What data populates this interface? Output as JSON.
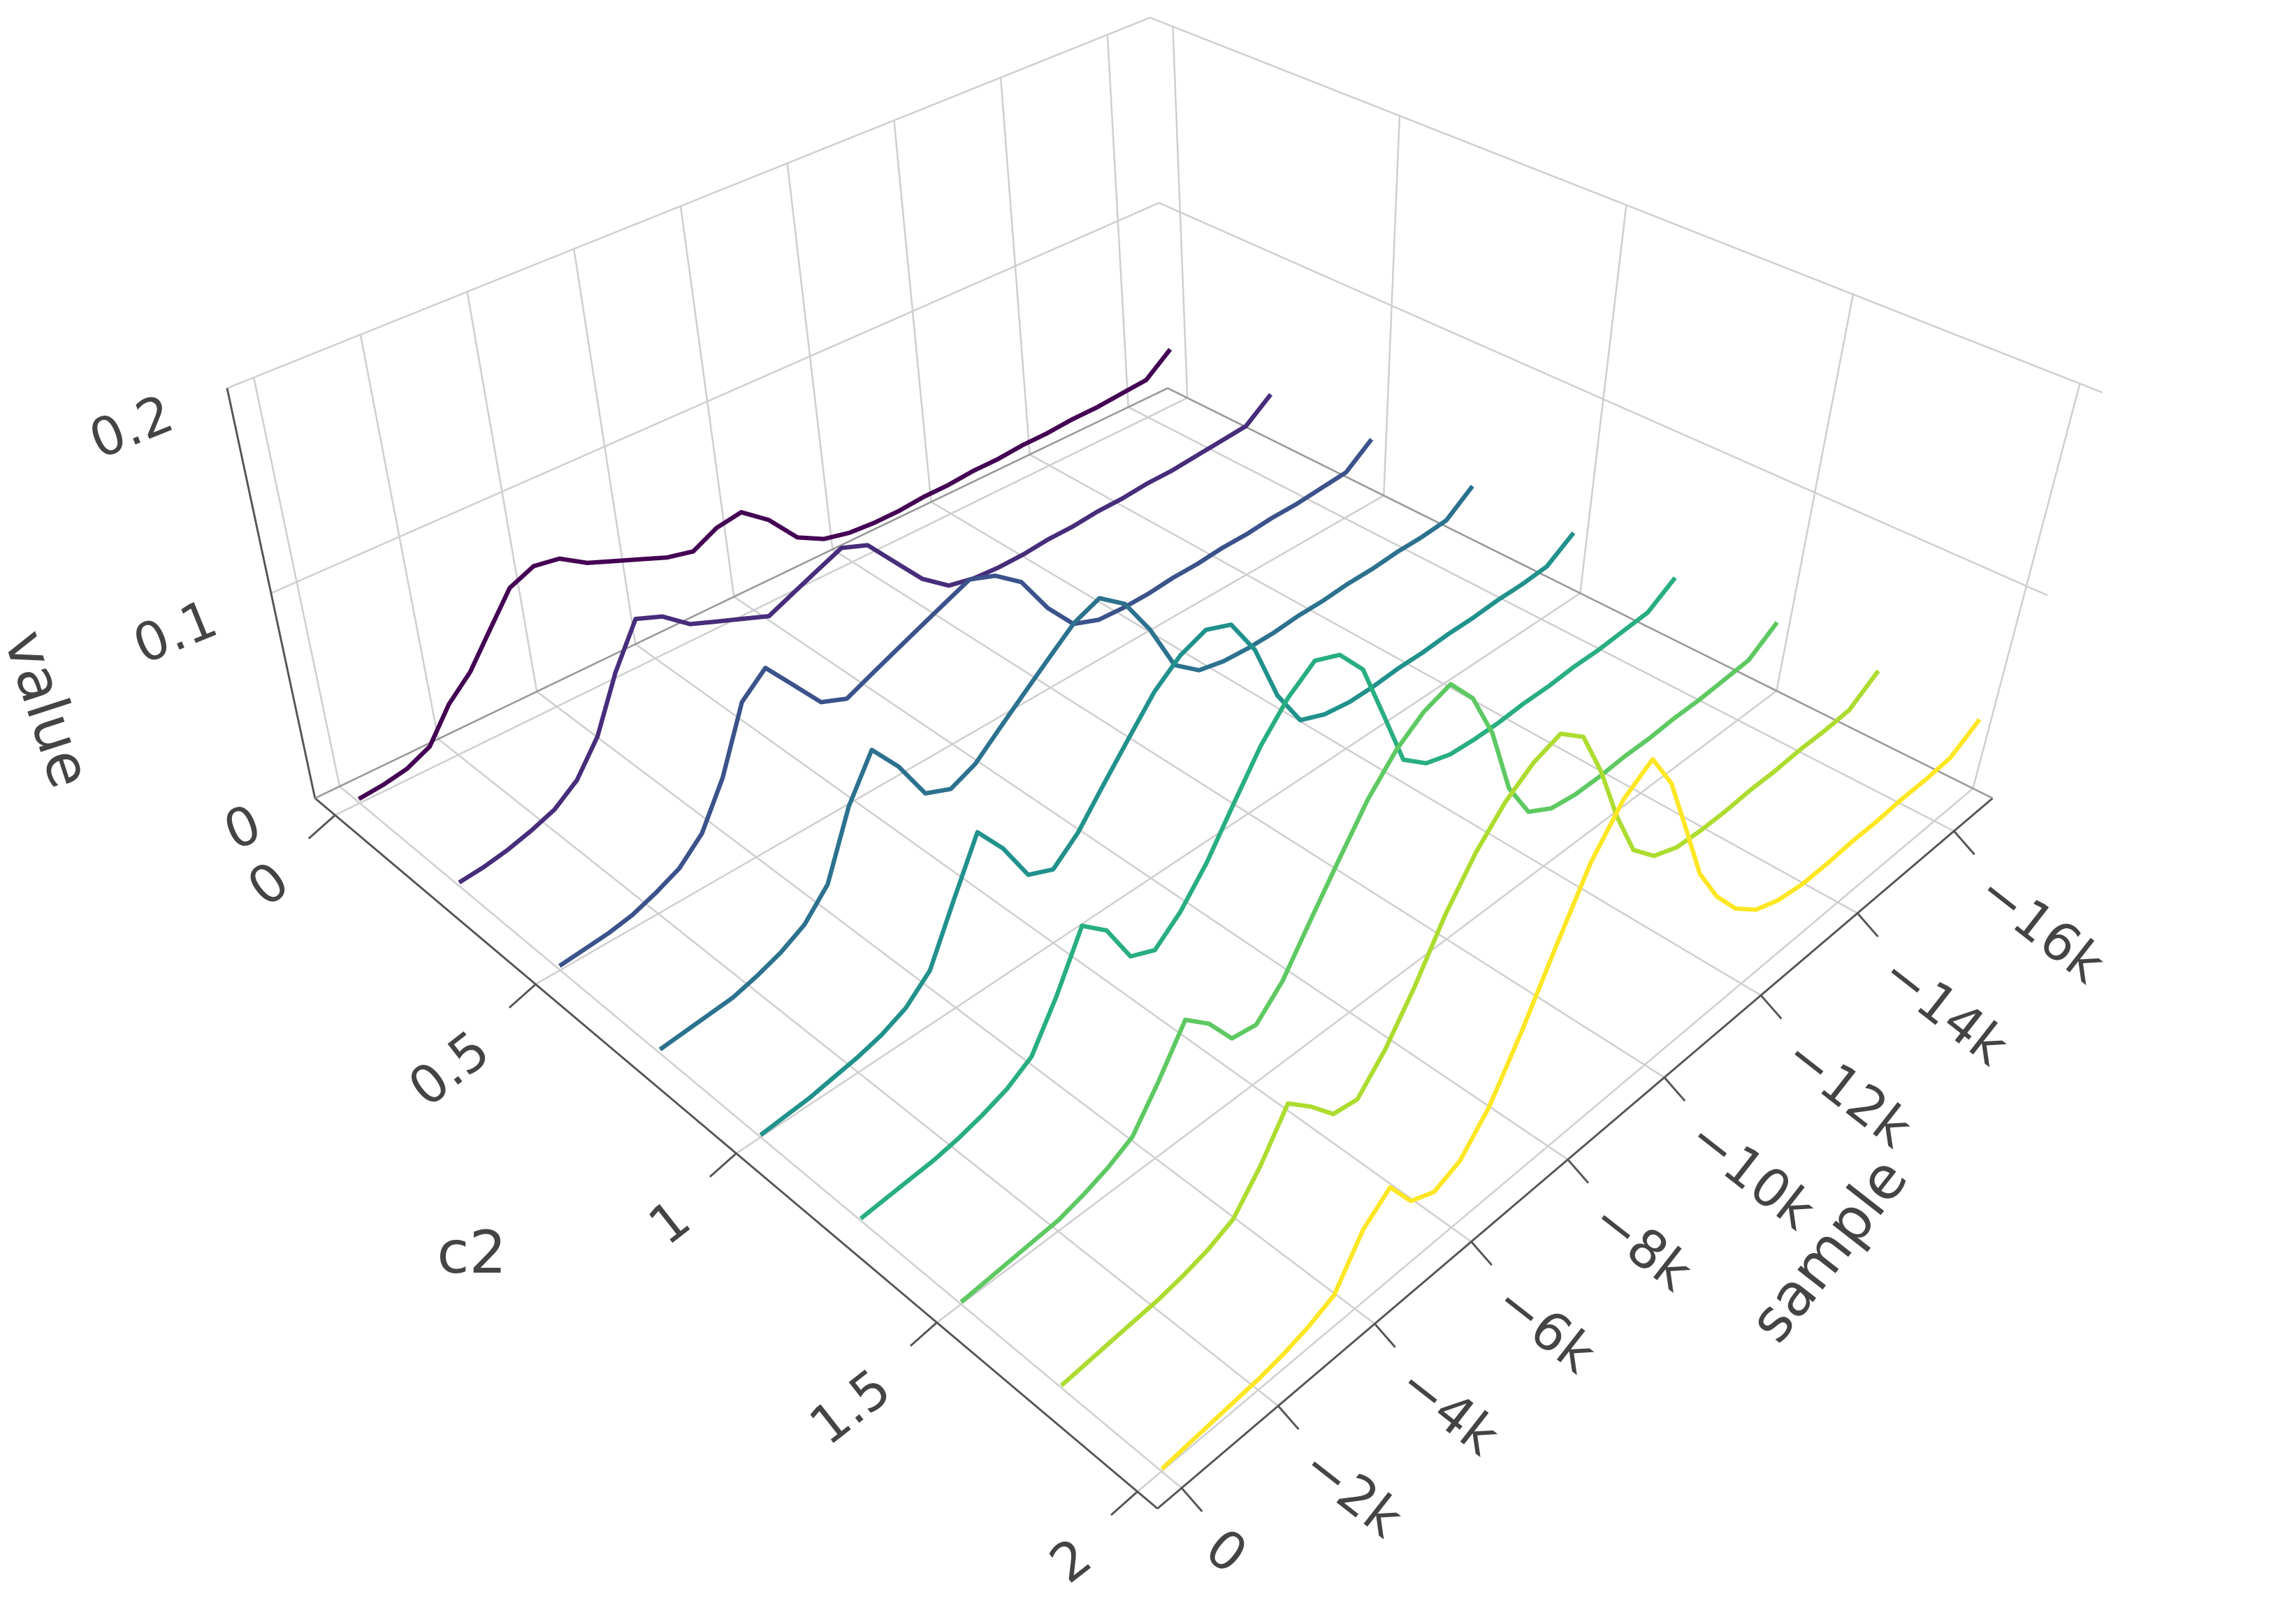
{
  "chart_data": {
    "type": "line3d",
    "x_title": "sample",
    "y_title": "c2",
    "z_title": "value",
    "xlim": [
      500,
      -16800
    ],
    "ylim": [
      -0.05,
      2.05
    ],
    "zlim": [
      0,
      0.2
    ],
    "xticks": [
      {
        "value": 0,
        "label": "0"
      },
      {
        "value": -2000,
        "label": "−2k"
      },
      {
        "value": -4000,
        "label": "−4k"
      },
      {
        "value": -6000,
        "label": "−6k"
      },
      {
        "value": -8000,
        "label": "−8k"
      },
      {
        "value": -10000,
        "label": "−10k"
      },
      {
        "value": -12000,
        "label": "−12k"
      },
      {
        "value": -14000,
        "label": "−14k"
      },
      {
        "value": -16000,
        "label": "−16k"
      }
    ],
    "yticks": [
      0,
      0.5,
      1,
      1.5,
      2
    ],
    "zticks": [
      0,
      0.1,
      0.2
    ],
    "grid": true,
    "x": [
      0,
      -500,
      -1000,
      -1500,
      -2000,
      -2500,
      -3000,
      -3500,
      -4000,
      -4500,
      -5000,
      -5500,
      -6000,
      -6500,
      -7000,
      -7500,
      -8000,
      -8500,
      -9000,
      -9500,
      -10000,
      -10500,
      -11000,
      -11500,
      -12000,
      -12500,
      -13000,
      -13500,
      -14000,
      -14500,
      -15000,
      -15500,
      -16000,
      -16500
    ],
    "series": [
      {
        "c2": 0,
        "color": "#440154",
        "values": [
          0.002,
          0.003,
          0.005,
          0.01,
          0.025,
          0.035,
          0.05,
          0.065,
          0.07,
          0.068,
          0.06,
          0.055,
          0.05,
          0.045,
          0.042,
          0.048,
          0.05,
          0.04,
          0.025,
          0.018,
          0.015,
          0.014,
          0.014,
          0.015,
          0.015,
          0.016,
          0.016,
          0.017,
          0.017,
          0.018,
          0.018,
          0.019,
          0.02,
          0.03
        ]
      },
      {
        "c2": 0.25,
        "color": "#472d7b",
        "values": [
          0.002,
          0.003,
          0.005,
          0.008,
          0.012,
          0.02,
          0.035,
          0.06,
          0.08,
          0.075,
          0.065,
          0.06,
          0.055,
          0.05,
          0.055,
          0.06,
          0.065,
          0.06,
          0.045,
          0.03,
          0.02,
          0.017,
          0.016,
          0.016,
          0.017,
          0.017,
          0.018,
          0.018,
          0.019,
          0.019,
          0.02,
          0.021,
          0.022,
          0.032
        ]
      },
      {
        "c2": 0.5,
        "color": "#3b528b",
        "values": [
          0.002,
          0.003,
          0.004,
          0.006,
          0.01,
          0.015,
          0.025,
          0.045,
          0.075,
          0.085,
          0.07,
          0.055,
          0.05,
          0.055,
          0.06,
          0.065,
          0.07,
          0.075,
          0.07,
          0.06,
          0.04,
          0.025,
          0.02,
          0.019,
          0.019,
          0.02,
          0.02,
          0.021,
          0.021,
          0.022,
          0.022,
          0.023,
          0.024,
          0.034
        ]
      },
      {
        "c2": 0.75,
        "color": "#2c728e",
        "values": [
          0.002,
          0.003,
          0.004,
          0.005,
          0.008,
          0.012,
          0.018,
          0.03,
          0.06,
          0.08,
          0.065,
          0.045,
          0.04,
          0.045,
          0.055,
          0.065,
          0.075,
          0.085,
          0.09,
          0.08,
          0.06,
          0.035,
          0.025,
          0.022,
          0.021,
          0.021,
          0.022,
          0.022,
          0.023,
          0.023,
          0.024,
          0.024,
          0.025,
          0.035
        ]
      },
      {
        "c2": 1,
        "color": "#21918c",
        "values": [
          0.001,
          0.002,
          0.003,
          0.005,
          0.007,
          0.01,
          0.015,
          0.025,
          0.05,
          0.075,
          0.06,
          0.04,
          0.035,
          0.045,
          0.06,
          0.075,
          0.09,
          0.1,
          0.105,
          0.1,
          0.08,
          0.05,
          0.03,
          0.025,
          0.023,
          0.023,
          0.024,
          0.024,
          0.025,
          0.025,
          0.026,
          0.026,
          0.027,
          0.036
        ]
      },
      {
        "c2": 1.25,
        "color": "#28ae80",
        "values": [
          0.001,
          0.002,
          0.003,
          0.004,
          0.006,
          0.009,
          0.013,
          0.02,
          0.04,
          0.065,
          0.055,
          0.035,
          0.03,
          0.04,
          0.055,
          0.075,
          0.095,
          0.11,
          0.12,
          0.115,
          0.1,
          0.07,
          0.04,
          0.03,
          0.026,
          0.025,
          0.025,
          0.026,
          0.026,
          0.027,
          0.027,
          0.028,
          0.029,
          0.038
        ]
      },
      {
        "c2": 1.5,
        "color": "#5ec962",
        "values": [
          0.001,
          0.002,
          0.003,
          0.004,
          0.005,
          0.008,
          0.012,
          0.018,
          0.035,
          0.055,
          0.045,
          0.03,
          0.028,
          0.04,
          0.06,
          0.08,
          0.1,
          0.115,
          0.125,
          0.13,
          0.115,
          0.09,
          0.055,
          0.035,
          0.028,
          0.026,
          0.026,
          0.027,
          0.027,
          0.028,
          0.028,
          0.029,
          0.03,
          0.04
        ]
      },
      {
        "c2": 1.75,
        "color": "#addc30",
        "values": [
          0.001,
          0.002,
          0.003,
          0.004,
          0.005,
          0.007,
          0.01,
          0.015,
          0.03,
          0.05,
          0.04,
          0.028,
          0.026,
          0.04,
          0.06,
          0.085,
          0.105,
          0.12,
          0.13,
          0.135,
          0.125,
          0.1,
          0.07,
          0.045,
          0.033,
          0.028,
          0.027,
          0.027,
          0.028,
          0.028,
          0.029,
          0.029,
          0.03,
          0.04
        ]
      },
      {
        "c2": 2,
        "color": "#fde725",
        "values": [
          0.001,
          0.002,
          0.003,
          0.004,
          0.005,
          0.007,
          0.01,
          0.015,
          0.035,
          0.045,
          0.03,
          0.025,
          0.03,
          0.045,
          0.07,
          0.1,
          0.13,
          0.15,
          0.16,
          0.14,
          0.11,
          0.08,
          0.06,
          0.045,
          0.035,
          0.03,
          0.028,
          0.028,
          0.029,
          0.029,
          0.03,
          0.03,
          0.031,
          0.04
        ]
      }
    ]
  }
}
